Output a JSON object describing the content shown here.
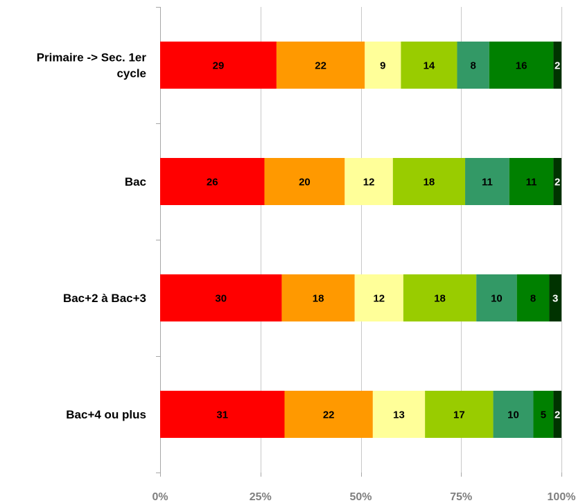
{
  "chart_data": {
    "type": "bar",
    "orientation": "horizontal",
    "stacked": true,
    "percent": true,
    "categories": [
      "Primaire -> Sec. 1er cycle",
      "Bac",
      "Bac+2 à Bac+3",
      "Bac+4 ou plus"
    ],
    "category_label_lines": [
      [
        "Primaire -> Sec. 1er",
        "cycle"
      ],
      [
        "Bac"
      ],
      [
        "Bac+2 à Bac+3"
      ],
      [
        "Bac+4 ou plus"
      ]
    ],
    "series": [
      {
        "color": "#ff0000",
        "label_color": "#000000",
        "values": [
          29,
          26,
          30,
          31
        ]
      },
      {
        "color": "#ff9900",
        "label_color": "#000000",
        "values": [
          22,
          20,
          18,
          22
        ]
      },
      {
        "color": "#ffff99",
        "label_color": "#000000",
        "values": [
          9,
          12,
          12,
          13
        ]
      },
      {
        "color": "#99cc00",
        "label_color": "#000000",
        "values": [
          14,
          18,
          18,
          17
        ]
      },
      {
        "color": "#339966",
        "label_color": "#000000",
        "values": [
          8,
          11,
          10,
          10
        ]
      },
      {
        "color": "#008000",
        "label_color": "#000000",
        "values": [
          16,
          11,
          8,
          5
        ]
      },
      {
        "color": "#003300",
        "label_color": "#ffffff",
        "values": [
          2,
          2,
          3,
          2
        ]
      }
    ],
    "xlim": [
      0,
      100
    ],
    "x_ticks": [
      "0%",
      "25%",
      "50%",
      "75%",
      "100%"
    ],
    "grid": true,
    "legend": "none",
    "title": "",
    "xlabel": "",
    "ylabel": ""
  }
}
